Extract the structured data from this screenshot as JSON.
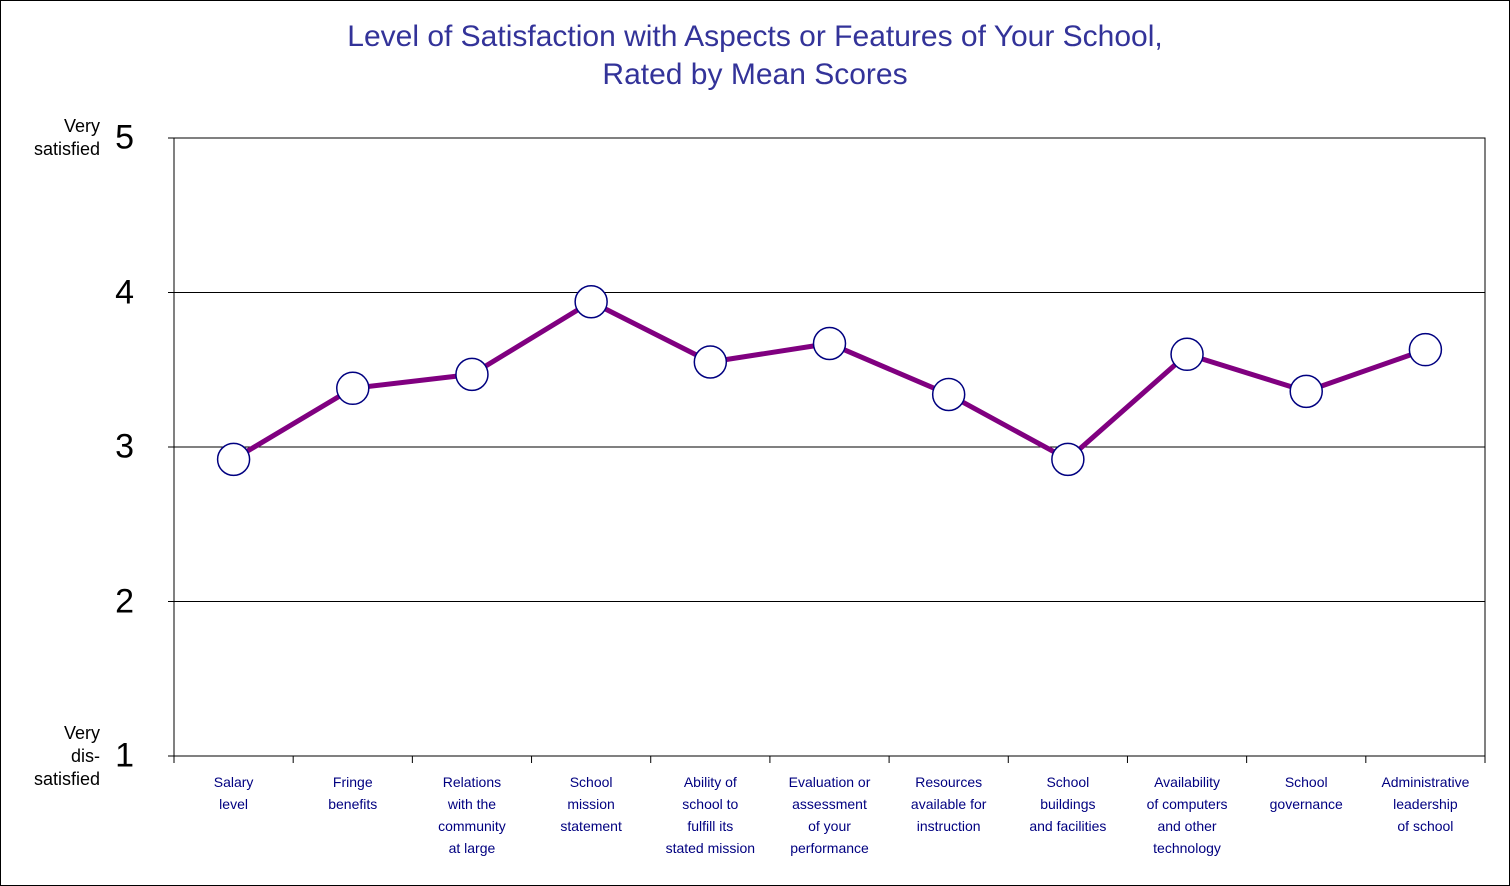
{
  "chart_data": {
    "type": "line",
    "title": "Level of Satisfaction with Aspects or Features of Your School,\nRated by Mean Scores",
    "categories": [
      "Salary\nlevel",
      "Fringe\nbenefits",
      "Relations\nwith the\ncommunity\nat large",
      "School\nmission\nstatement",
      "Ability of\nschool to\nfulfill its\nstated mission",
      "Evaluation or\nassessment\nof your\nperformance",
      "Resources\navailable for\ninstruction",
      "School\nbuildings\nand facilities",
      "Availability\nof computers\nand other\ntechnology",
      "School\ngovernance",
      "Administrative\nleadership\nof school"
    ],
    "series": [
      {
        "color": "#800080",
        "values": [
          2.92,
          3.38,
          3.47,
          3.94,
          3.55,
          3.67,
          3.34,
          2.92,
          3.6,
          3.36,
          3.63
        ]
      }
    ],
    "ylim": [
      1,
      5
    ],
    "yticks": [
      1,
      2,
      3,
      4,
      5
    ],
    "grid": true,
    "annotations": [
      {
        "text": "Very\nsatisfied",
        "y": 5
      },
      {
        "text": "Very\ndis-\nsatisfied",
        "y": 1
      }
    ]
  }
}
